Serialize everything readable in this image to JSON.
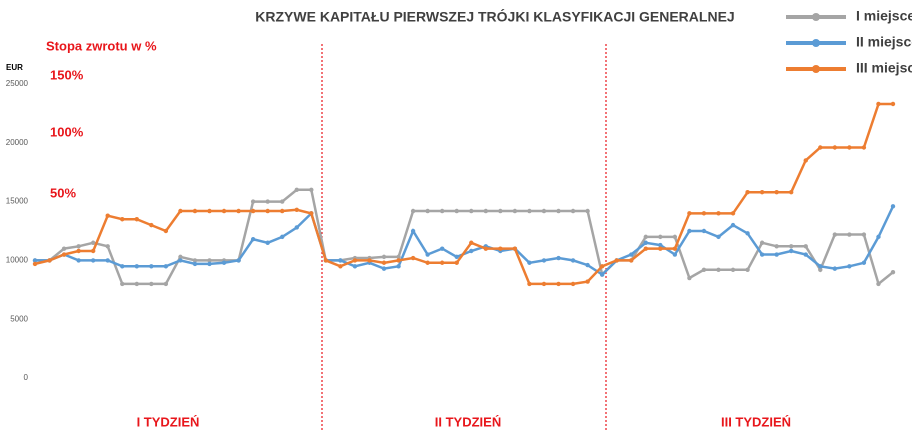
{
  "chart_data": {
    "type": "line",
    "title": "KRZYWE KAPITAŁU PIERWSZEJ TRÓJKI KLASYFIKACJI GENERALNEJ",
    "y_label": "EUR",
    "annotations": [
      "Stopa zwrotu w %",
      "150%",
      "100%",
      "50%"
    ],
    "week_labels": [
      "I TYDZIEŃ",
      "II TYDZIEŃ",
      "III TYDZIEŃ"
    ],
    "ylim": [
      0,
      25000
    ],
    "yticks": [
      0,
      5000,
      10000,
      15000,
      20000,
      25000
    ],
    "categories": [
      null,
      null,
      null,
      null,
      null,
      null,
      null,
      null,
      null,
      null,
      null,
      null,
      null,
      null,
      null,
      null,
      null,
      null,
      null,
      null,
      null,
      null,
      null,
      null,
      null,
      null,
      null,
      null,
      null,
      null,
      null,
      null,
      null,
      null,
      null,
      null,
      null,
      null,
      null,
      null,
      null,
      null,
      null,
      null,
      null,
      null,
      null,
      null,
      null,
      null,
      null,
      null,
      null,
      null,
      null,
      null,
      null,
      null,
      null,
      null
    ],
    "series": [
      {
        "name": "I miejsce",
        "color": "#a5a5a5",
        "values": [
          10000,
          10000,
          11000,
          11200,
          11500,
          11200,
          8000,
          8000,
          8000,
          8000,
          10300,
          10000,
          10000,
          10000,
          10000,
          15000,
          15000,
          15000,
          16000,
          16000,
          10000,
          10000,
          10200,
          10200,
          10300,
          10300,
          14200,
          14200,
          14200,
          14200,
          14200,
          14200,
          14200,
          14200,
          14200,
          14200,
          14200,
          14200,
          14200,
          8800,
          10000,
          10000,
          12000,
          12000,
          12000,
          8500,
          9200,
          9200,
          9200,
          9200,
          11500,
          11200,
          11200,
          11200,
          9200,
          12200,
          12200,
          12200,
          8000,
          9000
        ]
      },
      {
        "name": "II miejsce",
        "color": "#5b9bd5",
        "values": [
          10000,
          10000,
          10500,
          10000,
          10000,
          10000,
          9500,
          9500,
          9500,
          9500,
          10000,
          9700,
          9700,
          9800,
          10000,
          11800,
          11500,
          12000,
          12800,
          14000,
          10000,
          10000,
          9500,
          9800,
          9300,
          9500,
          12500,
          10500,
          11000,
          10300,
          10800,
          11200,
          10800,
          11000,
          9800,
          10000,
          10200,
          10000,
          9600,
          8800,
          10000,
          10500,
          11500,
          11300,
          10500,
          12500,
          12500,
          12000,
          13000,
          12300,
          10500,
          10500,
          10800,
          10500,
          9500,
          9300,
          9500,
          9800,
          12000,
          14600
        ]
      },
      {
        "name": "III miejsce",
        "color": "#ed7d31",
        "values": [
          9700,
          10000,
          10500,
          10800,
          10800,
          13800,
          13500,
          13500,
          13000,
          12500,
          14200,
          14200,
          14200,
          14200,
          14200,
          14200,
          14200,
          14200,
          14300,
          14000,
          10000,
          9500,
          10000,
          10000,
          9800,
          10000,
          10200,
          9800,
          9800,
          9800,
          11500,
          11000,
          11000,
          11000,
          8000,
          8000,
          8000,
          8000,
          8200,
          9500,
          10000,
          10000,
          11000,
          11000,
          11000,
          14000,
          14000,
          14000,
          14000,
          15800,
          15800,
          15800,
          15800,
          18500,
          19600,
          19600,
          19600,
          19600,
          23300,
          23300
        ]
      }
    ]
  }
}
